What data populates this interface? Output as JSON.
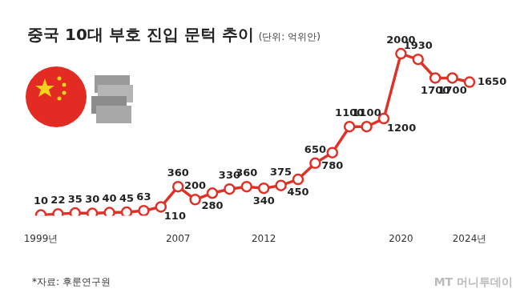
{
  "chart_data": {
    "type": "line",
    "title": "중국 10대 부호 진입 문턱 추이",
    "subtitle": "(단위: 억위안)",
    "source": "*자료: 후룬연구원",
    "credit": "MT 머니투데이",
    "categories": [
      "1999년",
      null,
      null,
      null,
      null,
      null,
      null,
      null,
      "2007",
      null,
      null,
      null,
      null,
      "2012",
      null,
      null,
      null,
      null,
      null,
      null,
      null,
      "2020",
      null,
      null,
      null,
      "2024년"
    ],
    "values": [
      10,
      22,
      35,
      30,
      40,
      45,
      63,
      110,
      360,
      200,
      280,
      330,
      360,
      340,
      375,
      450,
      650,
      780,
      1100,
      1100,
      1200,
      2000,
      1930,
      1700,
      1700,
      1650
    ],
    "color": "#e03127",
    "marker": "circle",
    "ylim": [
      0,
      2100
    ],
    "tick_labels": "x",
    "grid": false,
    "data_labels": true
  }
}
